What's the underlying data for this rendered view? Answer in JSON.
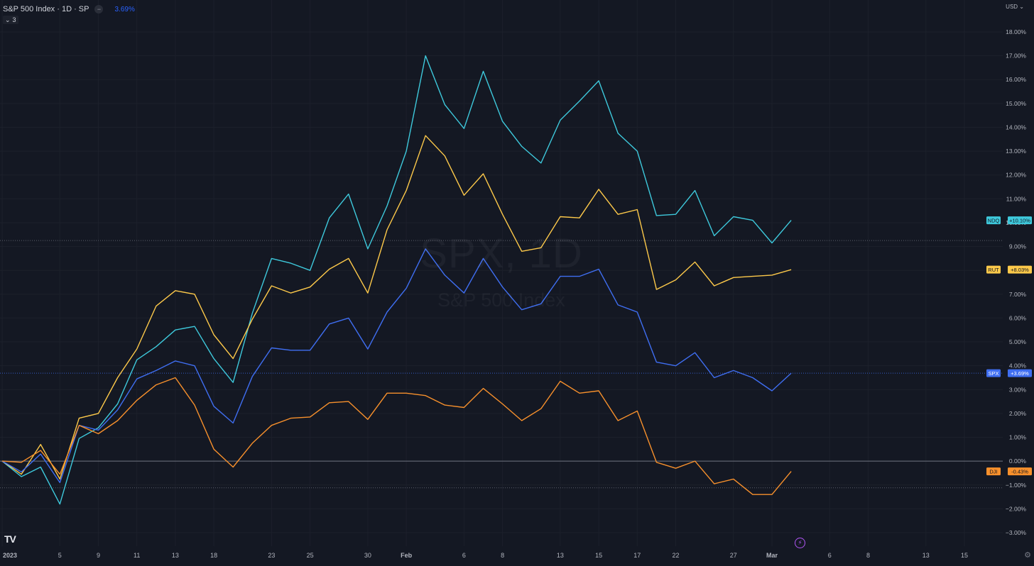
{
  "header": {
    "title": "S&P 500 Index · 1D · SP",
    "change": "3.69%",
    "collapse_label": "3",
    "currency": "USD"
  },
  "watermark": {
    "line1": "SPX, 1D",
    "line2": "S&P 500 Index"
  },
  "icons": {
    "dot": "circle-dash-icon",
    "collapse": "chevron-down-icon",
    "currency": "chevron-down-icon",
    "logo": "tradingview-logo",
    "bolt": "lightning-icon",
    "gear": "gear-icon"
  },
  "logo_text": "TV",
  "chart_data": {
    "type": "line",
    "x": [
      "2023-01-02",
      "2023-01-03",
      "2023-01-04",
      "2023-01-05",
      "2023-01-06",
      "2023-01-09",
      "2023-01-10",
      "2023-01-11",
      "2023-01-12",
      "2023-01-13",
      "2023-01-17",
      "2023-01-18",
      "2023-01-19",
      "2023-01-20",
      "2023-01-23",
      "2023-01-24",
      "2023-01-25",
      "2023-01-26",
      "2023-01-27",
      "2023-01-30",
      "2023-01-31",
      "2023-02-01",
      "2023-02-02",
      "2023-02-03",
      "2023-02-06",
      "2023-02-07",
      "2023-02-08",
      "2023-02-09",
      "2023-02-10",
      "2023-02-13",
      "2023-02-14",
      "2023-02-15",
      "2023-02-16",
      "2023-02-17",
      "2023-02-21",
      "2023-02-22",
      "2023-02-23",
      "2023-02-24",
      "2023-02-27",
      "2023-02-28",
      "2023-03-01",
      "2023-03-02"
    ],
    "series": [
      {
        "name": "NDQ",
        "color": "#3ec9dc",
        "label": "+10.10%",
        "values": [
          0.0,
          -0.65,
          -0.25,
          -1.8,
          0.95,
          1.4,
          2.4,
          4.25,
          4.8,
          5.5,
          5.65,
          4.3,
          3.3,
          6.2,
          8.5,
          8.3,
          8.0,
          10.2,
          11.2,
          8.9,
          10.7,
          13.0,
          17.0,
          14.95,
          13.95,
          16.35,
          14.25,
          13.2,
          12.5,
          14.3,
          15.1,
          15.95,
          13.75,
          13.0,
          10.3,
          10.35,
          11.35,
          9.45,
          10.25,
          10.1,
          9.15,
          10.1
        ]
      },
      {
        "name": "RUT",
        "color": "#fdc94a",
        "label": "+8.03%",
        "values": [
          0.0,
          -0.55,
          0.7,
          -0.75,
          1.8,
          2.0,
          3.5,
          4.7,
          6.5,
          7.15,
          7.0,
          5.3,
          4.3,
          5.95,
          7.35,
          7.05,
          7.3,
          8.05,
          8.5,
          7.05,
          9.7,
          11.35,
          13.65,
          12.8,
          11.15,
          12.05,
          10.35,
          8.8,
          8.95,
          10.25,
          10.2,
          11.4,
          10.35,
          10.55,
          7.2,
          7.6,
          8.35,
          7.35,
          7.7,
          7.75,
          7.8,
          8.03
        ]
      },
      {
        "name": "SPX",
        "color": "#3f6ef1",
        "label": "+3.69%",
        "values": [
          0.0,
          -0.45,
          0.3,
          -0.9,
          1.5,
          1.3,
          2.15,
          3.45,
          3.8,
          4.2,
          4.0,
          2.3,
          1.6,
          3.55,
          4.75,
          4.65,
          4.65,
          5.75,
          6.0,
          4.7,
          6.25,
          7.25,
          8.9,
          7.8,
          7.05,
          8.5,
          7.3,
          6.35,
          6.6,
          7.75,
          7.75,
          8.05,
          6.55,
          6.25,
          4.15,
          4.0,
          4.55,
          3.5,
          3.8,
          3.5,
          2.95,
          3.69
        ]
      },
      {
        "name": "DJI",
        "color": "#f7902c",
        "label": "-0.43%",
        "values": [
          0.0,
          -0.05,
          0.45,
          -0.55,
          1.5,
          1.15,
          1.7,
          2.55,
          3.2,
          3.5,
          2.35,
          0.5,
          -0.25,
          0.75,
          1.5,
          1.8,
          1.85,
          2.45,
          2.5,
          1.75,
          2.85,
          2.85,
          2.75,
          2.35,
          2.25,
          3.05,
          2.4,
          1.7,
          2.2,
          3.35,
          2.85,
          2.95,
          1.7,
          2.1,
          -0.05,
          -0.3,
          0.0,
          -0.95,
          -0.75,
          -1.4,
          -1.4,
          -0.43
        ]
      }
    ],
    "price_line": {
      "series": "SPX",
      "value": 3.69
    },
    "dotted_levels": [
      9.25,
      -1.12
    ],
    "zero_line": 0.0,
    "ylim": [
      -3.3,
      18.6
    ],
    "yticks": [
      18,
      17,
      16,
      15,
      14,
      13,
      12,
      11,
      10,
      9,
      8,
      7,
      6,
      5,
      4,
      3,
      2,
      1,
      0,
      -1,
      -2,
      -3
    ],
    "ytick_labels": [
      "18.00%",
      "17.00%",
      "16.00%",
      "15.00%",
      "14.00%",
      "13.00%",
      "12.00%",
      "11.00%",
      "10.00%",
      "9.00%",
      "8.00%",
      "7.00%",
      "6.00%",
      "5.00%",
      "4.00%",
      "3.00%",
      "2.00%",
      "1.00%",
      "0.00%",
      "−1.00%",
      "−2.00%",
      "−3.00%"
    ],
    "xtick_labels": [
      {
        "date": "2023-01-02",
        "label": "2023"
      },
      {
        "date": "2023-01-05",
        "label": "5"
      },
      {
        "date": "2023-01-09",
        "label": "9"
      },
      {
        "date": "2023-01-11",
        "label": "11"
      },
      {
        "date": "2023-01-13",
        "label": "13"
      },
      {
        "date": "2023-01-18",
        "label": "18"
      },
      {
        "date": "2023-01-23",
        "label": "23"
      },
      {
        "date": "2023-01-25",
        "label": "25"
      },
      {
        "date": "2023-01-30",
        "label": "30"
      },
      {
        "date": "2023-02-01",
        "label": "Feb"
      },
      {
        "date": "2023-02-06",
        "label": "6"
      },
      {
        "date": "2023-02-08",
        "label": "8"
      },
      {
        "date": "2023-02-13",
        "label": "13"
      },
      {
        "date": "2023-02-15",
        "label": "15"
      },
      {
        "date": "2023-02-17",
        "label": "17"
      },
      {
        "date": "2023-02-22",
        "label": "22"
      },
      {
        "date": "2023-02-27",
        "label": "27"
      },
      {
        "date": "2023-03-01",
        "label": "Mar"
      },
      {
        "date": "2023-03-06",
        "label": "6"
      },
      {
        "date": "2023-03-08",
        "label": "8"
      },
      {
        "date": "2023-03-13",
        "label": "13"
      },
      {
        "date": "2023-03-15",
        "label": "15"
      }
    ],
    "grid": true,
    "background": "#141823",
    "grid_color": "#1c202b",
    "axis_text_color": "#b2b5be"
  }
}
